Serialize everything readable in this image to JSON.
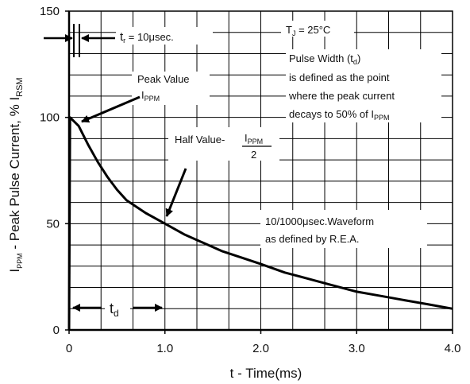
{
  "chart_data": {
    "type": "line",
    "title": "",
    "xlabel": "t - Time(ms)",
    "ylabel": "I_PPM - Peak Pulse Current, % I_RSM",
    "xlim": [
      0,
      4.0
    ],
    "ylim": [
      0,
      150
    ],
    "x_ticks": [
      "0",
      "1.0",
      "2.0",
      "3.0",
      "4.0"
    ],
    "y_ticks": [
      "0",
      "50",
      "100",
      "150"
    ],
    "grid": true,
    "series": [
      {
        "name": "",
        "x": [
          0,
          0.01,
          0.1,
          0.2,
          0.3,
          0.4,
          0.5,
          0.6,
          0.8,
          1.0,
          1.2,
          1.4,
          1.6,
          1.8,
          2.0,
          2.25,
          2.5,
          2.75,
          3.0,
          3.25,
          3.5,
          3.75,
          4.0
        ],
        "y": [
          0,
          100,
          96,
          87,
          79,
          72,
          66,
          61,
          55,
          50,
          45,
          41,
          37,
          34,
          31,
          27,
          24,
          21,
          18,
          16,
          14,
          12,
          10
        ]
      }
    ],
    "annotations": {
      "tr": {
        "main": "t",
        "sub": "r",
        "rest": " = 10μsec."
      },
      "tj": {
        "main": "T",
        "sub": "J",
        "rest": " = 25°C"
      },
      "pulse_width": {
        "line1_main": "Pulse Width (t",
        "line1_sub": "d",
        "line1_rest": ")",
        "line2": "is defined as the point",
        "line3": "where the peak current",
        "line4_main": "decays to 50% of I",
        "line4_sub": "PPM"
      },
      "peak_value": {
        "line1": "Peak Value",
        "line2_main": "I",
        "line2_sub": "PPM"
      },
      "half_value": {
        "label": "Half Value- ",
        "num_main": "I",
        "num_sub": "PPM",
        "den": "2"
      },
      "waveform": {
        "line1": "10/1000μsec.Waveform",
        "line2": "as defined by R.E.A."
      },
      "td": {
        "main": "t",
        "sub": "d"
      }
    }
  }
}
